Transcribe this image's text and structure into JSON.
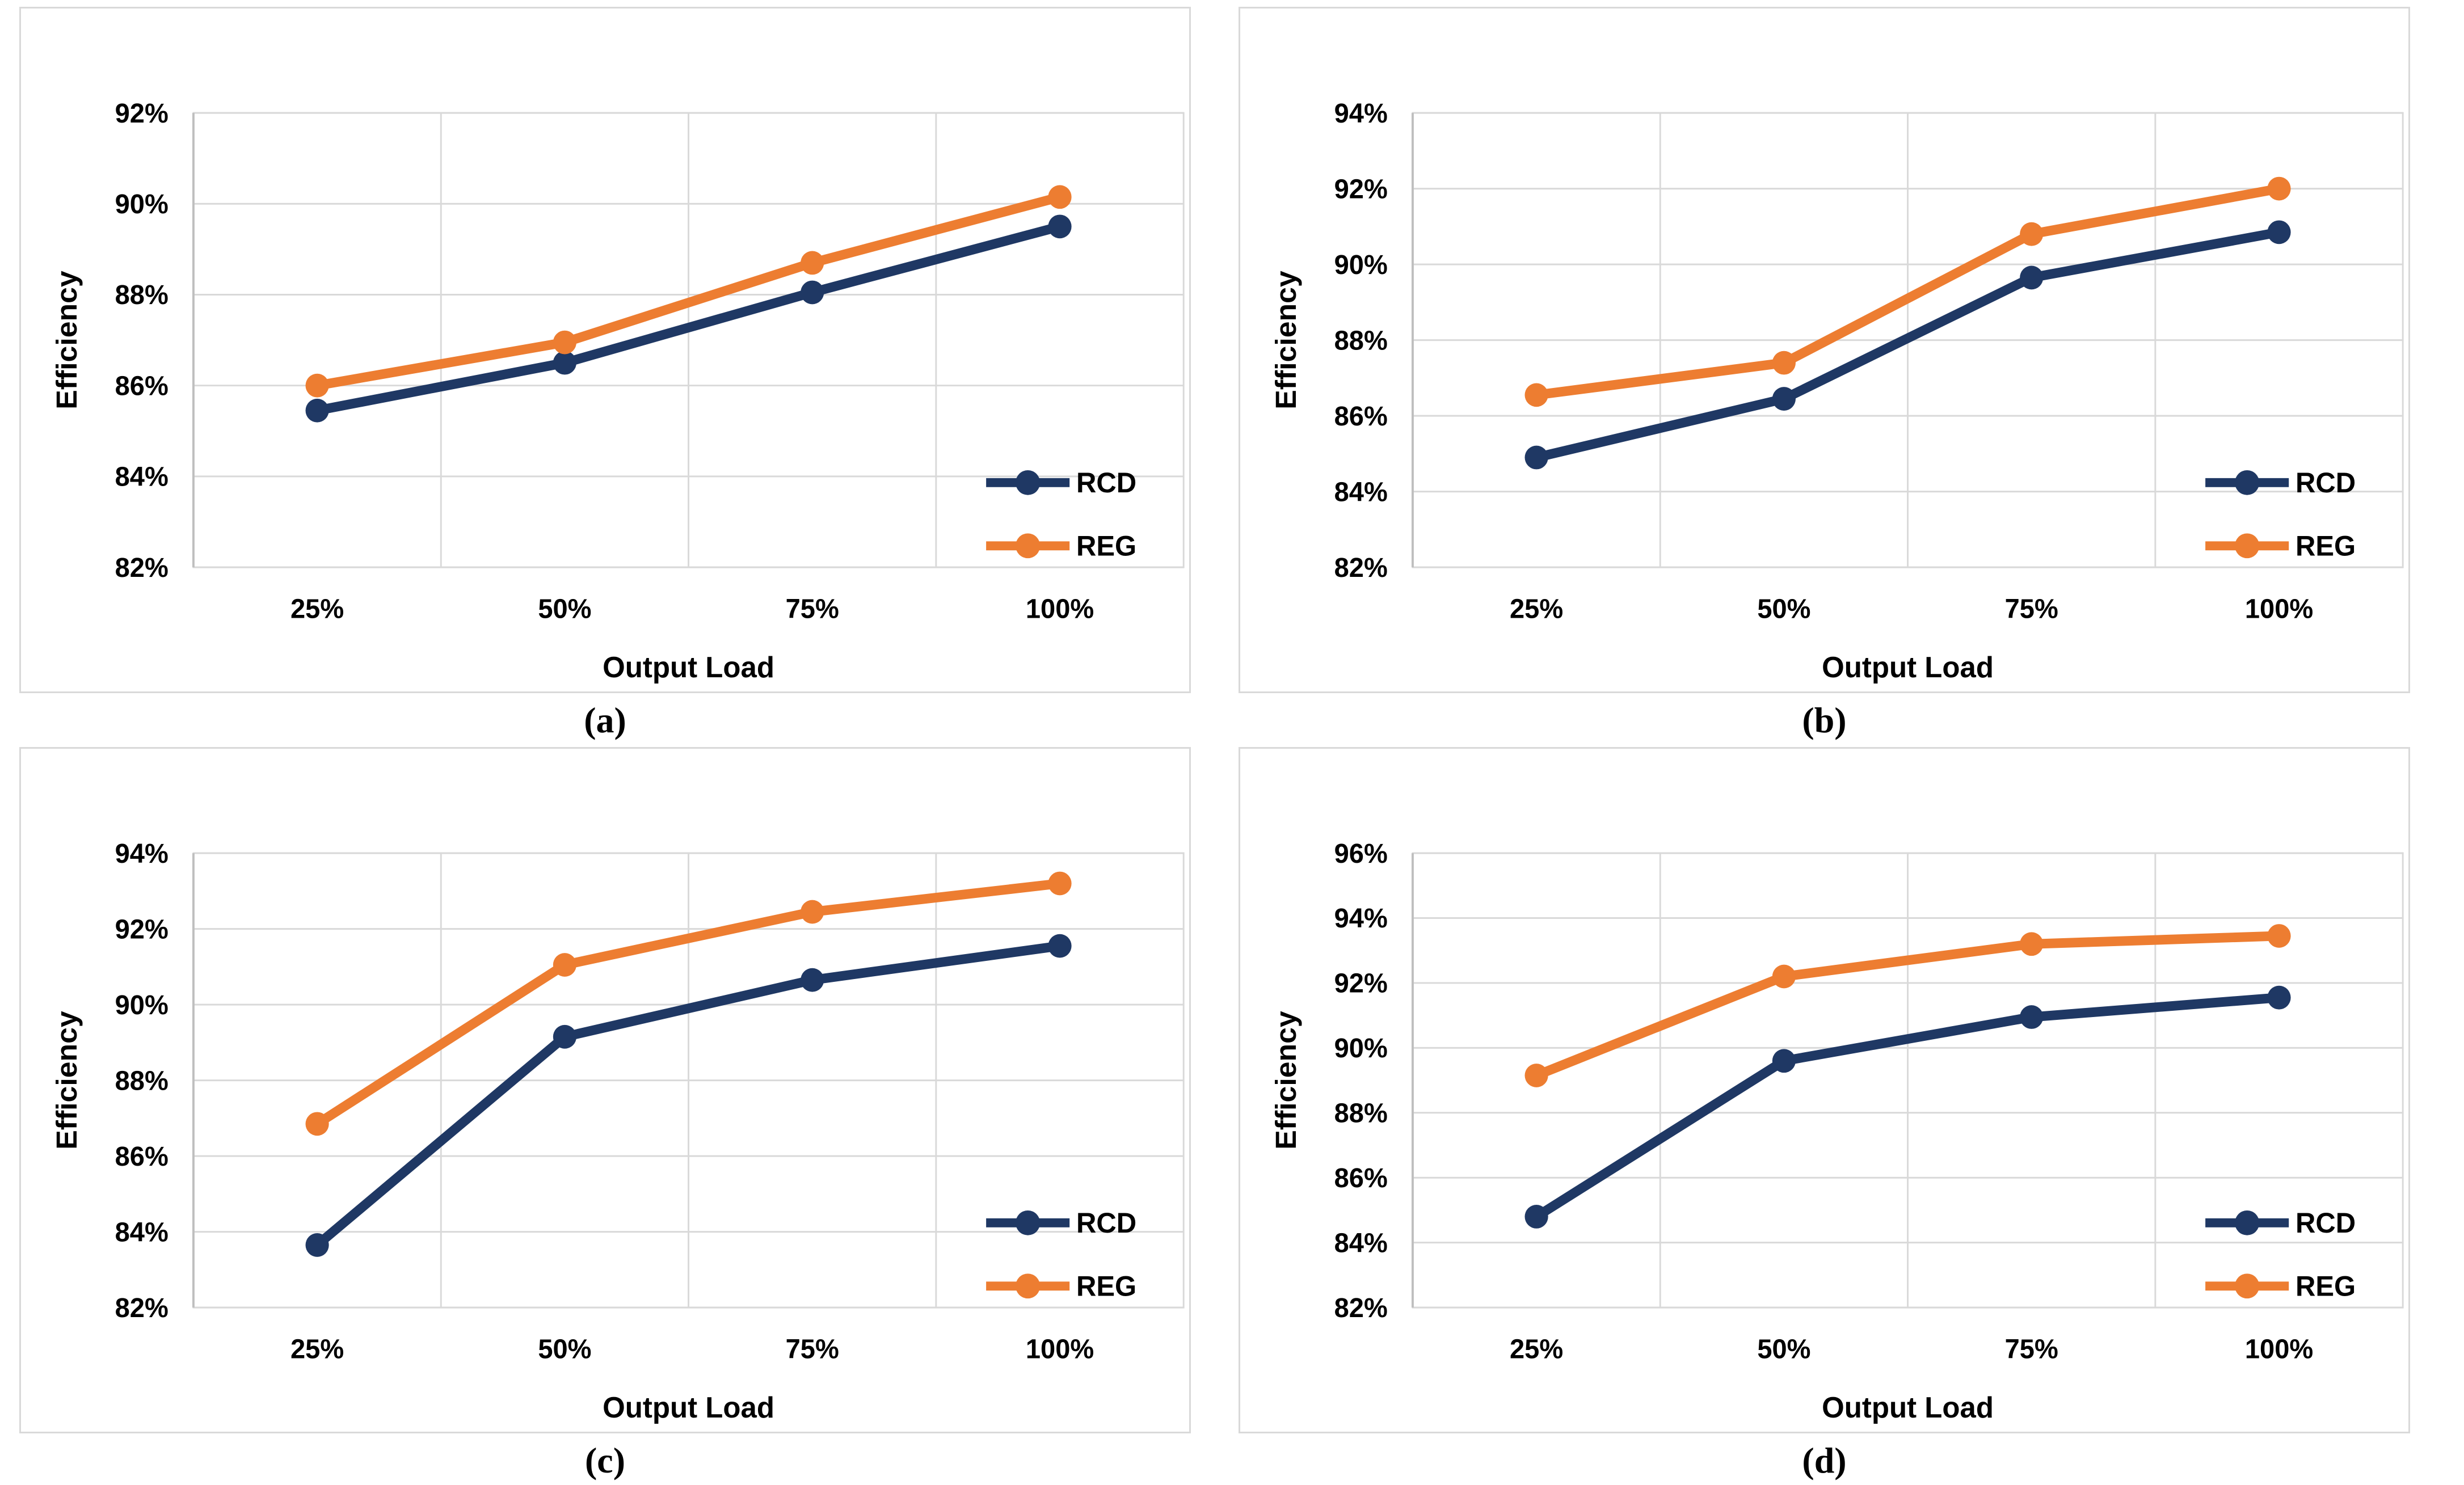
{
  "colors": {
    "grid": "#d9d9d9",
    "axis_line": "#bfbfbf",
    "panel_border": "#d9d9d9",
    "text": "#000000",
    "rcd": "#1f3864",
    "reg": "#ed7d31"
  },
  "chart_data": [
    {
      "id": "a",
      "caption": "(a)",
      "type": "line",
      "categories": [
        "25%",
        "50%",
        "75%",
        "100%"
      ],
      "xlabel": "Output Load",
      "ylabel": "Efficiency",
      "ylim": [
        82,
        92
      ],
      "ytick_step": 2,
      "ytick_labels": [
        "82%",
        "84%",
        "86%",
        "88%",
        "90%",
        "92%"
      ],
      "grid": true,
      "legend_position": "inside lower right",
      "legend": [
        "RCD",
        "REG"
      ],
      "series": [
        {
          "name": "RCD",
          "color": "#1f3864",
          "values": [
            85.45,
            86.5,
            88.05,
            89.5
          ]
        },
        {
          "name": "REG",
          "color": "#ed7d31",
          "values": [
            86.0,
            86.95,
            88.7,
            90.15
          ]
        }
      ]
    },
    {
      "id": "b",
      "caption": "(b)",
      "type": "line",
      "categories": [
        "25%",
        "50%",
        "75%",
        "100%"
      ],
      "xlabel": "Output Load",
      "ylabel": "Efficiency",
      "ylim": [
        82,
        94
      ],
      "ytick_step": 2,
      "ytick_labels": [
        "82%",
        "84%",
        "86%",
        "88%",
        "90%",
        "92%",
        "94%"
      ],
      "grid": true,
      "legend_position": "inside lower right",
      "legend": [
        "RCD",
        "REG"
      ],
      "series": [
        {
          "name": "RCD",
          "color": "#1f3864",
          "values": [
            84.9,
            86.45,
            89.65,
            90.85
          ]
        },
        {
          "name": "REG",
          "color": "#ed7d31",
          "values": [
            86.55,
            87.4,
            90.8,
            92.0
          ]
        }
      ]
    },
    {
      "id": "c",
      "caption": "(c)",
      "type": "line",
      "categories": [
        "25%",
        "50%",
        "75%",
        "100%"
      ],
      "xlabel": "Output Load",
      "ylabel": "Efficiency",
      "ylim": [
        82,
        94
      ],
      "ytick_step": 2,
      "ytick_labels": [
        "82%",
        "84%",
        "86%",
        "88%",
        "90%",
        "92%",
        "94%"
      ],
      "grid": true,
      "legend_position": "inside lower right",
      "legend": [
        "RCD",
        "REG"
      ],
      "series": [
        {
          "name": "RCD",
          "color": "#1f3864",
          "values": [
            83.65,
            89.15,
            90.65,
            91.55
          ]
        },
        {
          "name": "REG",
          "color": "#ed7d31",
          "values": [
            86.85,
            91.05,
            92.45,
            93.2
          ]
        }
      ]
    },
    {
      "id": "d",
      "caption": "(d)",
      "type": "line",
      "categories": [
        "25%",
        "50%",
        "75%",
        "100%"
      ],
      "xlabel": "Output Load",
      "ylabel": "Efficiency",
      "ylim": [
        82,
        96
      ],
      "ytick_step": 2,
      "ytick_labels": [
        "82%",
        "84%",
        "86%",
        "88%",
        "90%",
        "92%",
        "94%",
        "96%"
      ],
      "grid": true,
      "legend_position": "inside lower right",
      "legend": [
        "RCD",
        "REG"
      ],
      "series": [
        {
          "name": "RCD",
          "color": "#1f3864",
          "values": [
            84.8,
            89.6,
            90.95,
            91.55
          ]
        },
        {
          "name": "REG",
          "color": "#ed7d31",
          "values": [
            89.15,
            92.2,
            93.2,
            93.45
          ]
        }
      ]
    }
  ]
}
